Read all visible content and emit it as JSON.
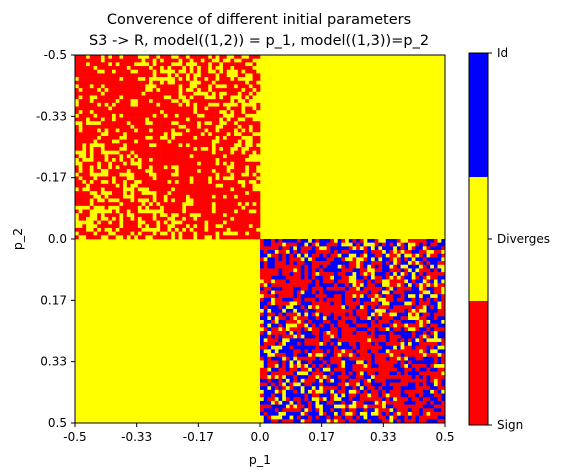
{
  "chart_data": {
    "type": "heatmap",
    "title_line1": "Converence of different initial parameters",
    "title_line2": "S3 -> R, model((1,2)) = p_1, model((1,3))=p_2",
    "xlabel": "p_1",
    "ylabel": "p_2",
    "x_ticks": [
      "-0.5",
      "-0.33",
      "-0.17",
      "0.0",
      "0.17",
      "0.33",
      "0.5"
    ],
    "y_ticks": [
      "-0.5",
      "-0.33",
      "-0.17",
      "0.0",
      "0.17",
      "0.33",
      "0.5"
    ],
    "xlim": [
      -0.5,
      0.5
    ],
    "ylim": [
      -0.5,
      0.5
    ],
    "y_inverted": true,
    "grid": false,
    "categories": [
      "Sign",
      "Diverges",
      "Id"
    ],
    "colors": {
      "Sign": "#ff0000",
      "Diverges": "#ffff00",
      "Id": "#0000ff"
    },
    "colorbar_labels": [
      "Sign",
      "Diverges",
      "Id"
    ],
    "grid_resolution": 100,
    "regions": [
      {
        "p1": [
          -0.5,
          0.0
        ],
        "p2": [
          -0.5,
          0.0
        ],
        "composition": {
          "Sign": 0.62,
          "Diverges": 0.38,
          "Id": 0.0
        },
        "pattern": "noisy, denser Sign along p_1 = p_2 diagonal"
      },
      {
        "p1": [
          0.0,
          0.5
        ],
        "p2": [
          -0.5,
          0.0
        ],
        "composition": {
          "Sign": 0.0,
          "Diverges": 1.0,
          "Id": 0.0
        },
        "pattern": "uniform"
      },
      {
        "p1": [
          -0.5,
          0.0
        ],
        "p2": [
          0.0,
          0.5
        ],
        "composition": {
          "Sign": 0.0,
          "Diverges": 1.0,
          "Id": 0.0
        },
        "pattern": "uniform"
      },
      {
        "p1": [
          0.0,
          0.5
        ],
        "p2": [
          0.0,
          0.5
        ],
        "composition": {
          "Sign": 0.38,
          "Diverges": 0.22,
          "Id": 0.4
        },
        "pattern": "noisy, denser Sign along p_1 = p_2 diagonal"
      }
    ]
  }
}
